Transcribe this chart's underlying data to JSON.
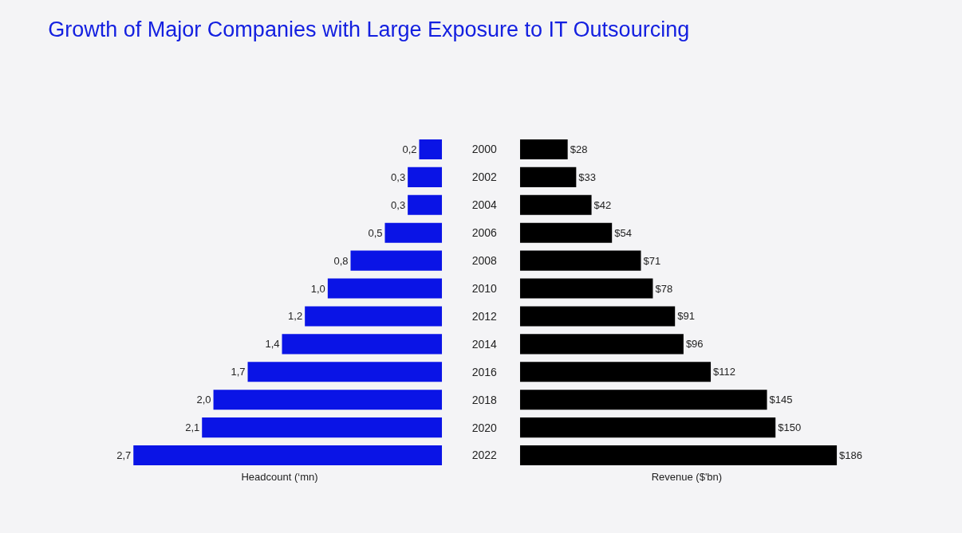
{
  "chart_data": [
    {
      "type": "bar",
      "orientation": "horizontal",
      "title": "Growth of Major Companies with Large Exposure to IT Outsourcing",
      "xlabel": "Headcount (‘mn)",
      "categories": [
        "2000",
        "2002",
        "2004",
        "2006",
        "2008",
        "2010",
        "2012",
        "2014",
        "2016",
        "2018",
        "2020",
        "2022"
      ],
      "values": [
        0.2,
        0.3,
        0.3,
        0.5,
        0.8,
        1.0,
        1.2,
        1.4,
        1.7,
        2.0,
        2.1,
        2.7
      ],
      "value_labels": [
        "0,2",
        "0,3",
        "0,3",
        "0,5",
        "0,8",
        "1,0",
        "1,2",
        "1,4",
        "1,7",
        "2,0",
        "2,1",
        "2,7"
      ],
      "color": "#0a14e6",
      "tick_labels": false,
      "grid": false,
      "legend": false
    },
    {
      "type": "bar",
      "orientation": "horizontal",
      "xlabel": "Revenue ($'bn)",
      "categories": [
        "2000",
        "2002",
        "2004",
        "2006",
        "2008",
        "2010",
        "2012",
        "2014",
        "2016",
        "2018",
        "2020",
        "2022"
      ],
      "values": [
        28,
        33,
        42,
        54,
        71,
        78,
        91,
        96,
        112,
        145,
        150,
        186
      ],
      "value_labels": [
        "$28",
        "$33",
        "$42",
        "$54",
        "$71",
        "$78",
        "$91",
        "$96",
        "$112",
        "$145",
        "$150",
        "$186"
      ],
      "color": "#000000",
      "tick_labels": "y",
      "grid": false,
      "legend": false
    }
  ]
}
